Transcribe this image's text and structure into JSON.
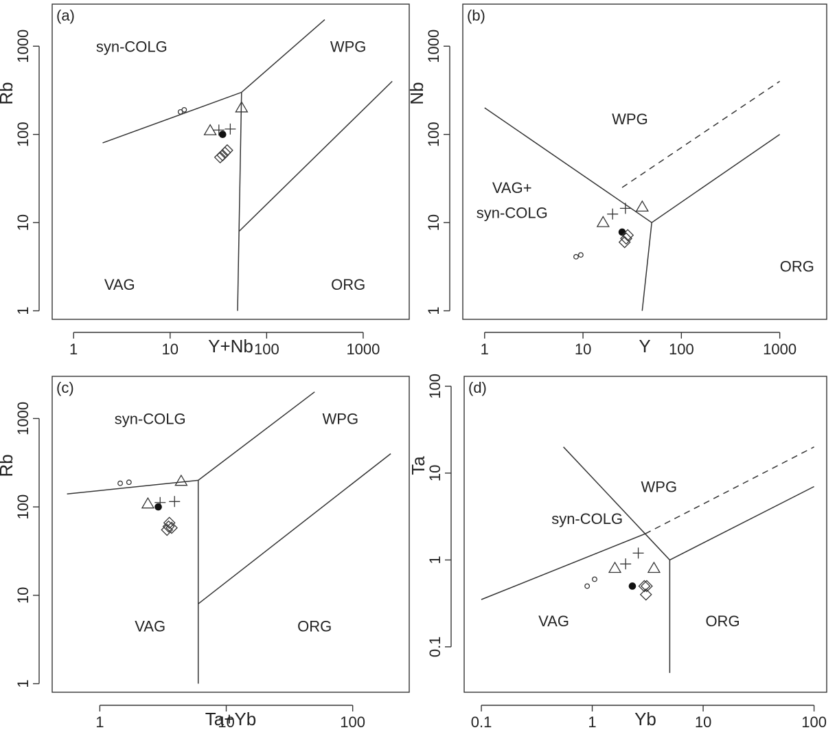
{
  "chart_data": [
    {
      "type": "scatter",
      "panel_label": "(a)",
      "xlabel": "Y+Nb",
      "ylabel": "Rb",
      "xscale": "log",
      "yscale": "log",
      "xlim": [
        0.6,
        3000
      ],
      "ylim": [
        0.8,
        3000
      ],
      "xticks": [
        {
          "v": 1,
          "label": "1"
        },
        {
          "v": 10,
          "label": "10"
        },
        {
          "v": 100,
          "label": "100"
        },
        {
          "v": 1000,
          "label": "1000"
        }
      ],
      "yticks": [
        {
          "v": 1,
          "label": "1"
        },
        {
          "v": 10,
          "label": "10"
        },
        {
          "v": 100,
          "label": "100"
        },
        {
          "v": 1000,
          "label": "1000"
        }
      ],
      "regions": [
        {
          "label": "syn-COLG",
          "x": 4,
          "y": 1000
        },
        {
          "label": "WPG",
          "x": 700,
          "y": 1000
        },
        {
          "label": "VAG",
          "x": 3,
          "y": 2
        },
        {
          "label": "ORG",
          "x": 700,
          "y": 2
        }
      ],
      "boundaries": [
        {
          "style": "solid",
          "points": [
            [
              2,
              80
            ],
            [
              55,
              300
            ],
            [
              400,
              2000
            ]
          ]
        },
        {
          "style": "solid",
          "points": [
            [
              55,
              300
            ],
            [
              50,
              1
            ]
          ]
        },
        {
          "style": "solid",
          "points": [
            [
              52,
              8
            ],
            [
              2000,
              400
            ]
          ]
        }
      ],
      "series": [
        {
          "marker": "small-circle",
          "points": [
            [
              12.8,
              180
            ],
            [
              14,
              190
            ]
          ]
        },
        {
          "marker": "triangle",
          "points": [
            [
              26,
              110
            ],
            [
              55,
              200
            ]
          ]
        },
        {
          "marker": "plus",
          "points": [
            [
              32,
              112
            ],
            [
              42,
              115
            ]
          ]
        },
        {
          "marker": "filled-circle",
          "points": [
            [
              35,
              100
            ]
          ]
        },
        {
          "marker": "diamond",
          "points": [
            [
              33,
              55
            ],
            [
              35,
              58
            ],
            [
              37,
              62
            ],
            [
              39,
              66
            ]
          ]
        }
      ]
    },
    {
      "type": "scatter",
      "panel_label": "(b)",
      "xlabel": "Y",
      "ylabel": "Nb",
      "xscale": "log",
      "yscale": "log",
      "xlim": [
        0.6,
        3000
      ],
      "ylim": [
        0.8,
        3000
      ],
      "xticks": [
        {
          "v": 1,
          "label": "1"
        },
        {
          "v": 10,
          "label": "10"
        },
        {
          "v": 100,
          "label": "100"
        },
        {
          "v": 1000,
          "label": "1000"
        }
      ],
      "yticks": [
        {
          "v": 1,
          "label": "1"
        },
        {
          "v": 10,
          "label": "10"
        },
        {
          "v": 100,
          "label": "100"
        },
        {
          "v": 1000,
          "label": "1000"
        }
      ],
      "regions": [
        {
          "label": "WPG",
          "x": 30,
          "y": 150
        },
        {
          "label": "VAG+",
          "x": 1.9,
          "y": 25
        },
        {
          "label": "syn-COLG",
          "x": 1.9,
          "y": 13
        },
        {
          "label": "ORG",
          "x": 1500,
          "y": 3.2
        }
      ],
      "boundaries": [
        {
          "style": "solid",
          "points": [
            [
              1,
              200
            ],
            [
              50,
              10
            ],
            [
              1000,
              100
            ]
          ]
        },
        {
          "style": "solid",
          "points": [
            [
              50,
              10
            ],
            [
              40,
              1
            ]
          ]
        },
        {
          "style": "dashed",
          "points": [
            [
              25,
              25
            ],
            [
              1000,
              400
            ]
          ]
        }
      ],
      "series": [
        {
          "marker": "small-circle",
          "points": [
            [
              8.5,
              4.1
            ],
            [
              9.5,
              4.3
            ]
          ]
        },
        {
          "marker": "triangle",
          "points": [
            [
              16,
              10
            ],
            [
              40,
              15
            ]
          ]
        },
        {
          "marker": "plus",
          "points": [
            [
              20,
              12.5
            ],
            [
              27,
              14.5
            ]
          ]
        },
        {
          "marker": "filled-circle",
          "points": [
            [
              25,
              7.8
            ]
          ]
        },
        {
          "marker": "diamond",
          "points": [
            [
              26.5,
              6
            ],
            [
              27.5,
              6.6
            ],
            [
              28.5,
              7.2
            ]
          ]
        }
      ]
    },
    {
      "type": "scatter",
      "panel_label": "(c)",
      "xlabel": "Ta+Yb",
      "ylabel": "Rb",
      "xscale": "log",
      "yscale": "log",
      "xlim": [
        0.42,
        280
      ],
      "ylim": [
        0.8,
        3000
      ],
      "xticks": [
        {
          "v": 1,
          "label": "1"
        },
        {
          "v": 10,
          "label": "10"
        },
        {
          "v": 100,
          "label": "100"
        }
      ],
      "yticks": [
        {
          "v": 1,
          "label": "1"
        },
        {
          "v": 10,
          "label": "10"
        },
        {
          "v": 100,
          "label": "100"
        },
        {
          "v": 1000,
          "label": "1000"
        }
      ],
      "regions": [
        {
          "label": "syn-COLG",
          "x": 2.5,
          "y": 1000
        },
        {
          "label": "WPG",
          "x": 80,
          "y": 1000
        },
        {
          "label": "VAG",
          "x": 2.5,
          "y": 4.5
        },
        {
          "label": "ORG",
          "x": 50,
          "y": 4.5
        }
      ],
      "boundaries": [
        {
          "style": "solid",
          "points": [
            [
              0.55,
              140
            ],
            [
              6,
              200
            ],
            [
              50,
              2000
            ]
          ]
        },
        {
          "style": "solid",
          "points": [
            [
              6,
              200
            ],
            [
              6,
              1
            ]
          ]
        },
        {
          "style": "solid",
          "points": [
            [
              6,
              8
            ],
            [
              200,
              400
            ]
          ]
        }
      ],
      "series": [
        {
          "marker": "small-circle",
          "points": [
            [
              1.45,
              185
            ],
            [
              1.7,
              190
            ]
          ]
        },
        {
          "marker": "triangle",
          "points": [
            [
              2.4,
              108
            ],
            [
              4.4,
              195
            ]
          ]
        },
        {
          "marker": "plus",
          "points": [
            [
              3.0,
              112
            ],
            [
              3.9,
              115
            ]
          ]
        },
        {
          "marker": "filled-circle",
          "points": [
            [
              2.9,
              100
            ]
          ]
        },
        {
          "marker": "diamond",
          "points": [
            [
              3.4,
              55
            ],
            [
              3.5,
              60
            ],
            [
              3.7,
              58
            ],
            [
              3.55,
              66
            ]
          ]
        }
      ]
    },
    {
      "type": "scatter",
      "panel_label": "(d)",
      "xlabel": "Yb",
      "ylabel": "Ta",
      "xscale": "log",
      "yscale": "log",
      "xlim": [
        0.07,
        130
      ],
      "ylim": [
        0.03,
        130
      ],
      "xticks": [
        {
          "v": 0.1,
          "label": "0.1"
        },
        {
          "v": 1,
          "label": "1"
        },
        {
          "v": 10,
          "label": "10"
        },
        {
          "v": 100,
          "label": "100"
        }
      ],
      "yticks": [
        {
          "v": 0.1,
          "label": "0.1"
        },
        {
          "v": 1,
          "label": "1"
        },
        {
          "v": 10,
          "label": "10"
        },
        {
          "v": 100,
          "label": "100"
        }
      ],
      "regions": [
        {
          "label": "WPG",
          "x": 4,
          "y": 7
        },
        {
          "label": "syn-COLG",
          "x": 0.9,
          "y": 3
        },
        {
          "label": "VAG",
          "x": 0.45,
          "y": 0.2
        },
        {
          "label": "ORG",
          "x": 15,
          "y": 0.2
        }
      ],
      "boundaries": [
        {
          "style": "solid",
          "points": [
            [
              0.1,
              0.35
            ],
            [
              3,
              2
            ],
            [
              5,
              1
            ],
            [
              100,
              7
            ]
          ]
        },
        {
          "style": "solid",
          "points": [
            [
              0.55,
              20
            ],
            [
              3,
              2
            ]
          ]
        },
        {
          "style": "solid",
          "points": [
            [
              5,
              1
            ],
            [
              5,
              0.05
            ]
          ]
        },
        {
          "style": "dashed",
          "points": [
            [
              3,
              2
            ],
            [
              100,
              20
            ]
          ]
        }
      ],
      "series": [
        {
          "marker": "small-circle",
          "points": [
            [
              0.9,
              0.5
            ],
            [
              1.05,
              0.6
            ]
          ]
        },
        {
          "marker": "triangle",
          "points": [
            [
              1.6,
              0.8
            ],
            [
              3.6,
              0.8
            ]
          ]
        },
        {
          "marker": "plus",
          "points": [
            [
              2.0,
              0.9
            ],
            [
              2.6,
              1.2
            ]
          ]
        },
        {
          "marker": "filled-circle",
          "points": [
            [
              2.3,
              0.5
            ]
          ]
        },
        {
          "marker": "diamond",
          "points": [
            [
              2.95,
              0.5
            ],
            [
              3.1,
              0.5
            ],
            [
              3.05,
              0.4
            ]
          ]
        }
      ]
    }
  ]
}
